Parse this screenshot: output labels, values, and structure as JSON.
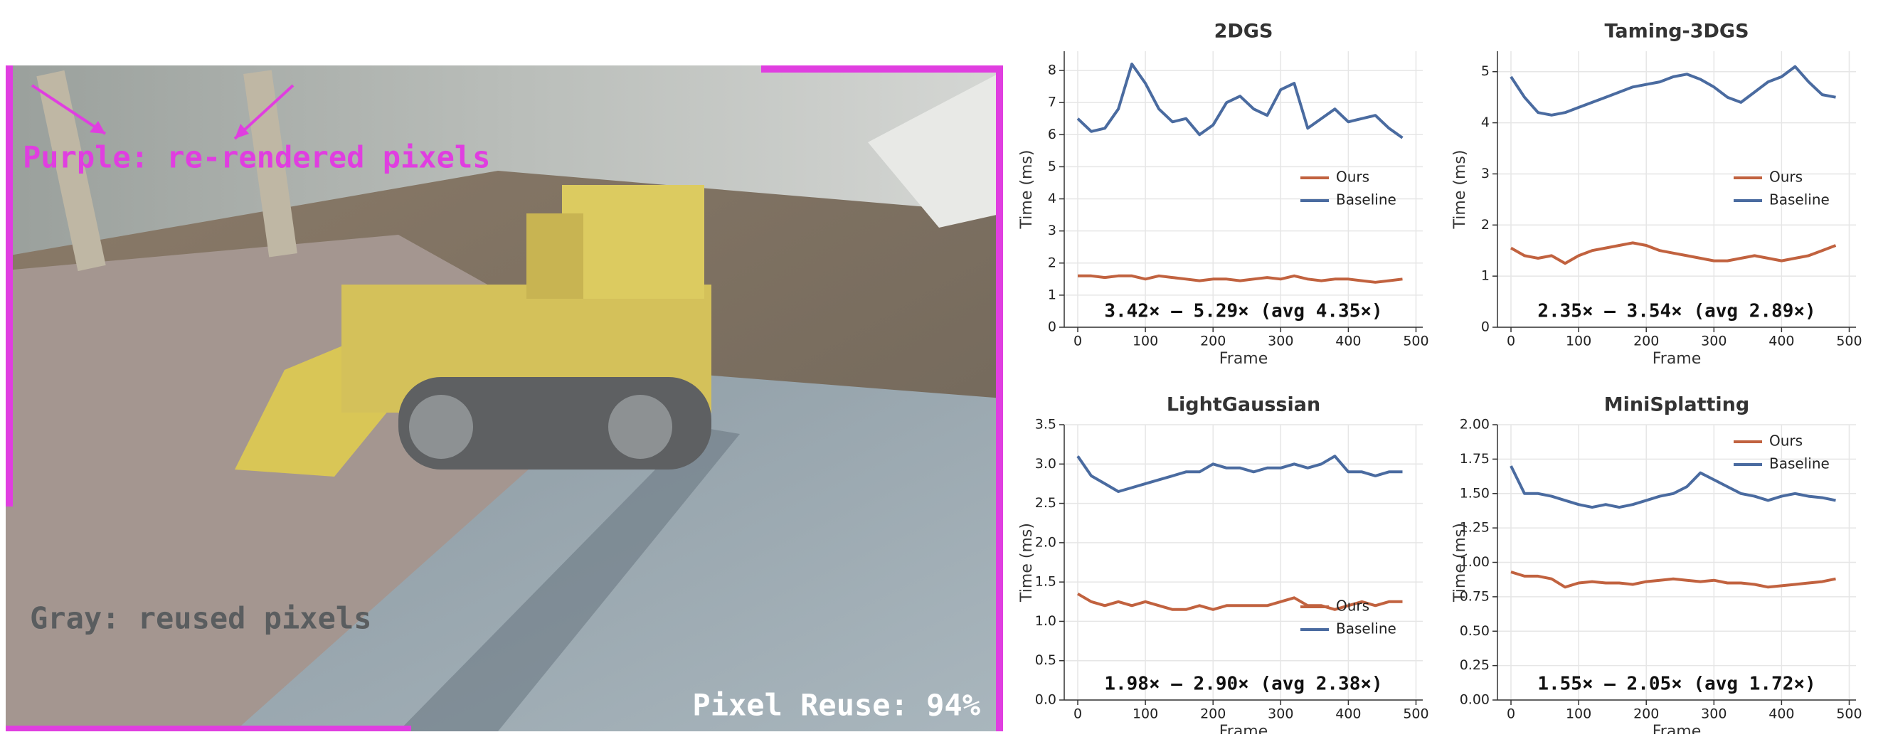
{
  "image": {
    "labels": [
      "Purple: re-rendered pixels",
      "Gray: reused pixels",
      "Pixel Reuse: 94%"
    ]
  },
  "chart_data": [
    {
      "type": "line",
      "title": "2DGS",
      "xlabel": "Frame",
      "ylabel": "Time (ms)",
      "annotation": "3.42× – 5.29× (avg 4.35×)",
      "x": [
        0,
        20,
        40,
        60,
        80,
        100,
        120,
        140,
        160,
        180,
        200,
        220,
        240,
        260,
        280,
        300,
        320,
        340,
        360,
        380,
        400,
        420,
        440,
        460,
        480
      ],
      "series": [
        {
          "name": "Ours",
          "color": "#c1623f",
          "values": [
            1.6,
            1.6,
            1.55,
            1.6,
            1.6,
            1.5,
            1.6,
            1.55,
            1.5,
            1.45,
            1.5,
            1.5,
            1.45,
            1.5,
            1.55,
            1.5,
            1.6,
            1.5,
            1.45,
            1.5,
            1.5,
            1.45,
            1.4,
            1.45,
            1.5
          ]
        },
        {
          "name": "Baseline",
          "color": "#4a6ba0",
          "values": [
            6.5,
            6.1,
            6.2,
            6.8,
            8.2,
            7.6,
            6.8,
            6.4,
            6.5,
            6.0,
            6.3,
            7.0,
            7.2,
            6.8,
            6.6,
            7.4,
            7.6,
            6.2,
            6.5,
            6.8,
            6.4,
            6.5,
            6.6,
            6.2,
            5.9
          ]
        }
      ],
      "xlim": [
        -20,
        510
      ],
      "ylim": [
        0,
        8.6
      ],
      "xticks": [
        0,
        100,
        200,
        300,
        400,
        500
      ],
      "yticks": [
        0,
        1,
        2,
        3,
        4,
        5,
        6,
        7,
        8
      ],
      "grid": true,
      "legend": "center right"
    },
    {
      "type": "line",
      "title": "Taming-3DGS",
      "xlabel": "Frame",
      "ylabel": "Time (ms)",
      "annotation": "2.35× – 3.54× (avg 2.89×)",
      "x": [
        0,
        20,
        40,
        60,
        80,
        100,
        120,
        140,
        160,
        180,
        200,
        220,
        240,
        260,
        280,
        300,
        320,
        340,
        360,
        380,
        400,
        420,
        440,
        460,
        480
      ],
      "series": [
        {
          "name": "Ours",
          "color": "#c1623f",
          "values": [
            1.55,
            1.4,
            1.35,
            1.4,
            1.25,
            1.4,
            1.5,
            1.55,
            1.6,
            1.65,
            1.6,
            1.5,
            1.45,
            1.4,
            1.35,
            1.3,
            1.3,
            1.35,
            1.4,
            1.35,
            1.3,
            1.35,
            1.4,
            1.5,
            1.6
          ]
        },
        {
          "name": "Baseline",
          "color": "#4a6ba0",
          "values": [
            4.9,
            4.5,
            4.2,
            4.15,
            4.2,
            4.3,
            4.4,
            4.5,
            4.6,
            4.7,
            4.75,
            4.8,
            4.9,
            4.95,
            4.85,
            4.7,
            4.5,
            4.4,
            4.6,
            4.8,
            4.9,
            5.1,
            4.8,
            4.55,
            4.5
          ]
        }
      ],
      "xlim": [
        -20,
        510
      ],
      "ylim": [
        0,
        5.4
      ],
      "xticks": [
        0,
        100,
        200,
        300,
        400,
        500
      ],
      "yticks": [
        0,
        1,
        2,
        3,
        4,
        5
      ],
      "grid": true,
      "legend": "center right"
    },
    {
      "type": "line",
      "title": "LightGaussian",
      "xlabel": "Frame",
      "ylabel": "Time (ms)",
      "annotation": "1.98× – 2.90× (avg 2.38×)",
      "x": [
        0,
        20,
        40,
        60,
        80,
        100,
        120,
        140,
        160,
        180,
        200,
        220,
        240,
        260,
        280,
        300,
        320,
        340,
        360,
        380,
        400,
        420,
        440,
        460,
        480
      ],
      "series": [
        {
          "name": "Ours",
          "color": "#c1623f",
          "values": [
            1.35,
            1.25,
            1.2,
            1.25,
            1.2,
            1.25,
            1.2,
            1.15,
            1.15,
            1.2,
            1.15,
            1.2,
            1.2,
            1.2,
            1.2,
            1.25,
            1.3,
            1.2,
            1.2,
            1.15,
            1.2,
            1.25,
            1.2,
            1.25,
            1.25
          ]
        },
        {
          "name": "Baseline",
          "color": "#4a6ba0",
          "values": [
            3.1,
            2.85,
            2.75,
            2.65,
            2.7,
            2.75,
            2.8,
            2.85,
            2.9,
            2.9,
            3.0,
            2.95,
            2.95,
            2.9,
            2.95,
            2.95,
            3.0,
            2.95,
            3.0,
            3.1,
            2.9,
            2.9,
            2.85,
            2.9,
            2.9
          ]
        }
      ],
      "xlim": [
        -20,
        510
      ],
      "ylim": [
        0,
        3.5
      ],
      "xticks": [
        0,
        100,
        200,
        300,
        400,
        500
      ],
      "yticks": [
        {
          "value": 0,
          "label": "0.0"
        },
        0.5,
        {
          "value": 1,
          "label": "1.0"
        },
        1.5,
        {
          "value": 2,
          "label": "2.0"
        },
        2.5,
        {
          "value": 3,
          "label": "3.0"
        },
        3.5
      ],
      "grid": true,
      "legend": "lower center right"
    },
    {
      "type": "line",
      "title": "MiniSplatting",
      "xlabel": "Frame",
      "ylabel": "Time (ms)",
      "annotation": "1.55× – 2.05× (avg 1.72×)",
      "x": [
        0,
        20,
        40,
        60,
        80,
        100,
        120,
        140,
        160,
        180,
        200,
        220,
        240,
        260,
        280,
        300,
        320,
        340,
        360,
        380,
        400,
        420,
        440,
        460,
        480
      ],
      "series": [
        {
          "name": "Ours",
          "color": "#c1623f",
          "values": [
            0.93,
            0.9,
            0.9,
            0.88,
            0.82,
            0.85,
            0.86,
            0.85,
            0.85,
            0.84,
            0.86,
            0.87,
            0.88,
            0.87,
            0.86,
            0.87,
            0.85,
            0.85,
            0.84,
            0.82,
            0.83,
            0.84,
            0.85,
            0.86,
            0.88
          ]
        },
        {
          "name": "Baseline",
          "color": "#4a6ba0",
          "values": [
            1.7,
            1.5,
            1.5,
            1.48,
            1.45,
            1.42,
            1.4,
            1.42,
            1.4,
            1.42,
            1.45,
            1.48,
            1.5,
            1.55,
            1.65,
            1.6,
            1.55,
            1.5,
            1.48,
            1.45,
            1.48,
            1.5,
            1.48,
            1.47,
            1.45
          ]
        }
      ],
      "xlim": [
        -20,
        510
      ],
      "ylim": [
        0,
        2.0
      ],
      "xticks": [
        0,
        100,
        200,
        300,
        400,
        500
      ],
      "yticks": [
        {
          "value": 0,
          "label": "0.00"
        },
        0.25,
        {
          "value": 0.5,
          "label": "0.50"
        },
        0.75,
        {
          "value": 1,
          "label": "1.00"
        },
        1.25,
        {
          "value": 1.5,
          "label": "1.50"
        },
        1.75,
        {
          "value": 2,
          "label": "2.00"
        }
      ],
      "grid": true,
      "legend": "upper right"
    }
  ]
}
